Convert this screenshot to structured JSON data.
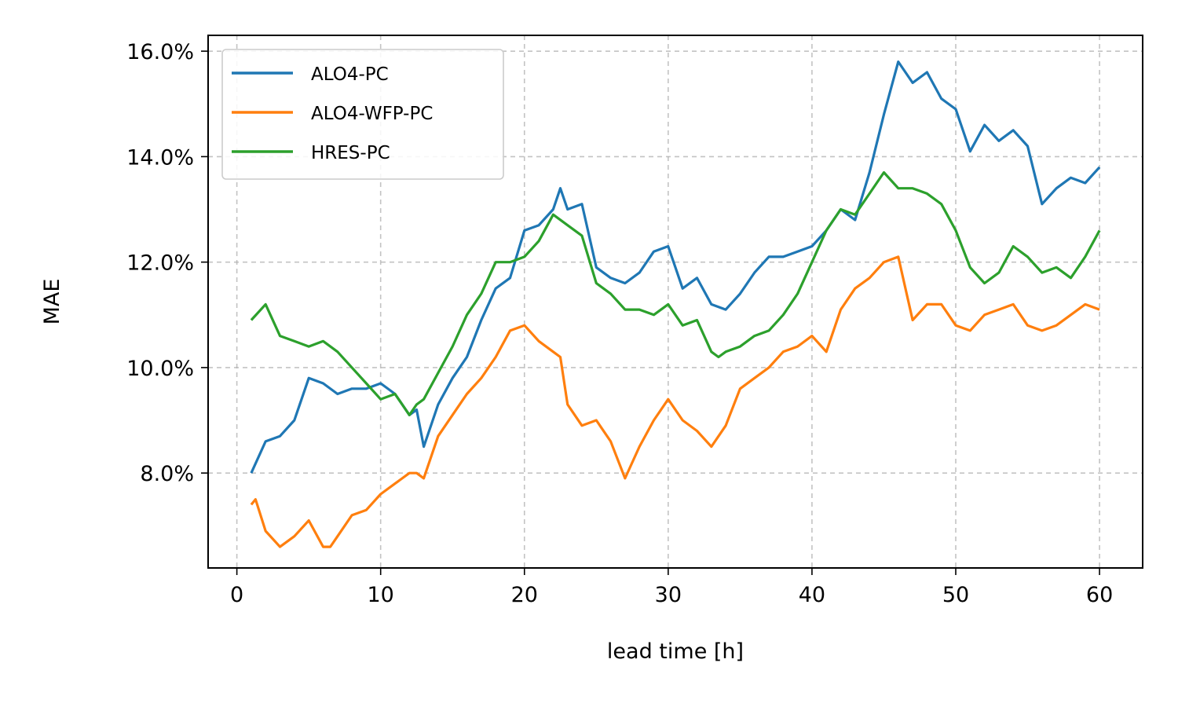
{
  "chart_data": {
    "type": "line",
    "title": "",
    "xlabel": "lead time [h]",
    "ylabel": "MAE",
    "xlim": [
      -2,
      63
    ],
    "ylim": [
      0.062,
      0.163
    ],
    "xticks": [
      0,
      10,
      20,
      30,
      40,
      50,
      60
    ],
    "xtick_labels": [
      "0",
      "10",
      "20",
      "30",
      "40",
      "50",
      "60"
    ],
    "yticks": [
      0.08,
      0.1,
      0.12,
      0.14,
      0.16
    ],
    "ytick_labels": [
      "8.0%",
      "10.0%",
      "12.0%",
      "14.0%",
      "16.0%"
    ],
    "grid": true,
    "legend_position": "top-left",
    "series": [
      {
        "name": "ALO4-PC",
        "color": "#1f77b4",
        "x": [
          1,
          2,
          3,
          4,
          5,
          6,
          7,
          8,
          9,
          10,
          11,
          12,
          12.5,
          13,
          14,
          15,
          16,
          17,
          18,
          19,
          20,
          21,
          22,
          22.5,
          23,
          24,
          25,
          26,
          27,
          28,
          29,
          30,
          31,
          32,
          33,
          34,
          35,
          36,
          37,
          38,
          39,
          40,
          41,
          42,
          43,
          44,
          45,
          46,
          47,
          48,
          49,
          50,
          51,
          52,
          53,
          54,
          55,
          56,
          57,
          58,
          59,
          60
        ],
        "y": [
          0.08,
          0.086,
          0.087,
          0.09,
          0.098,
          0.097,
          0.095,
          0.096,
          0.096,
          0.097,
          0.095,
          0.091,
          0.092,
          0.085,
          0.093,
          0.098,
          0.102,
          0.109,
          0.115,
          0.117,
          0.126,
          0.127,
          0.13,
          0.134,
          0.13,
          0.131,
          0.119,
          0.117,
          0.116,
          0.118,
          0.122,
          0.123,
          0.115,
          0.117,
          0.112,
          0.111,
          0.114,
          0.118,
          0.121,
          0.121,
          0.122,
          0.123,
          0.126,
          0.13,
          0.128,
          0.137,
          0.148,
          0.158,
          0.154,
          0.156,
          0.151,
          0.149,
          0.141,
          0.146,
          0.143,
          0.145,
          0.142,
          0.131,
          0.134,
          0.136,
          0.135,
          0.138
        ]
      },
      {
        "name": "ALO4-WFP-PC",
        "color": "#ff7f0e",
        "x": [
          1,
          1.3,
          2,
          3,
          4,
          5,
          6,
          6.5,
          7,
          8,
          9,
          10,
          11,
          12,
          12.5,
          13,
          14,
          15,
          16,
          17,
          18,
          19,
          20,
          21,
          22,
          22.5,
          23,
          24,
          25,
          26,
          27,
          28,
          29,
          30,
          31,
          32,
          33,
          34,
          35,
          36,
          37,
          38,
          39,
          40,
          41,
          42,
          43,
          44,
          45,
          46,
          47,
          48,
          49,
          50,
          51,
          52,
          53,
          54,
          55,
          56,
          57,
          58,
          59,
          60
        ],
        "y": [
          0.074,
          0.075,
          0.069,
          0.066,
          0.068,
          0.071,
          0.066,
          0.066,
          0.068,
          0.072,
          0.073,
          0.076,
          0.078,
          0.08,
          0.08,
          0.079,
          0.087,
          0.091,
          0.095,
          0.098,
          0.102,
          0.107,
          0.108,
          0.105,
          0.103,
          0.102,
          0.093,
          0.089,
          0.09,
          0.086,
          0.079,
          0.085,
          0.09,
          0.094,
          0.09,
          0.088,
          0.085,
          0.089,
          0.096,
          0.098,
          0.1,
          0.103,
          0.104,
          0.106,
          0.103,
          0.111,
          0.115,
          0.117,
          0.12,
          0.121,
          0.109,
          0.112,
          0.112,
          0.108,
          0.107,
          0.11,
          0.111,
          0.112,
          0.108,
          0.107,
          0.108,
          0.11,
          0.112,
          0.111
        ]
      },
      {
        "name": "HRES-PC",
        "color": "#2ca02c",
        "x": [
          1,
          2,
          3,
          4,
          5,
          6,
          7,
          8,
          9,
          10,
          11,
          12,
          12.5,
          13,
          14,
          15,
          16,
          17,
          18,
          19,
          20,
          21,
          22,
          23,
          24,
          25,
          26,
          27,
          28,
          29,
          30,
          31,
          32,
          33,
          33.5,
          34,
          35,
          36,
          37,
          38,
          39,
          40,
          41,
          42,
          43,
          44,
          45,
          46,
          47,
          48,
          49,
          50,
          51,
          52,
          53,
          54,
          55,
          56,
          57,
          58,
          59,
          60
        ],
        "y": [
          0.109,
          0.112,
          0.106,
          0.105,
          0.104,
          0.105,
          0.103,
          0.1,
          0.097,
          0.094,
          0.095,
          0.091,
          0.093,
          0.094,
          0.099,
          0.104,
          0.11,
          0.114,
          0.12,
          0.12,
          0.121,
          0.124,
          0.129,
          0.127,
          0.125,
          0.116,
          0.114,
          0.111,
          0.111,
          0.11,
          0.112,
          0.108,
          0.109,
          0.103,
          0.102,
          0.103,
          0.104,
          0.106,
          0.107,
          0.11,
          0.114,
          0.12,
          0.126,
          0.13,
          0.129,
          0.133,
          0.137,
          0.134,
          0.134,
          0.133,
          0.131,
          0.126,
          0.119,
          0.116,
          0.118,
          0.123,
          0.121,
          0.118,
          0.119,
          0.117,
          0.121,
          0.126
        ]
      }
    ]
  }
}
